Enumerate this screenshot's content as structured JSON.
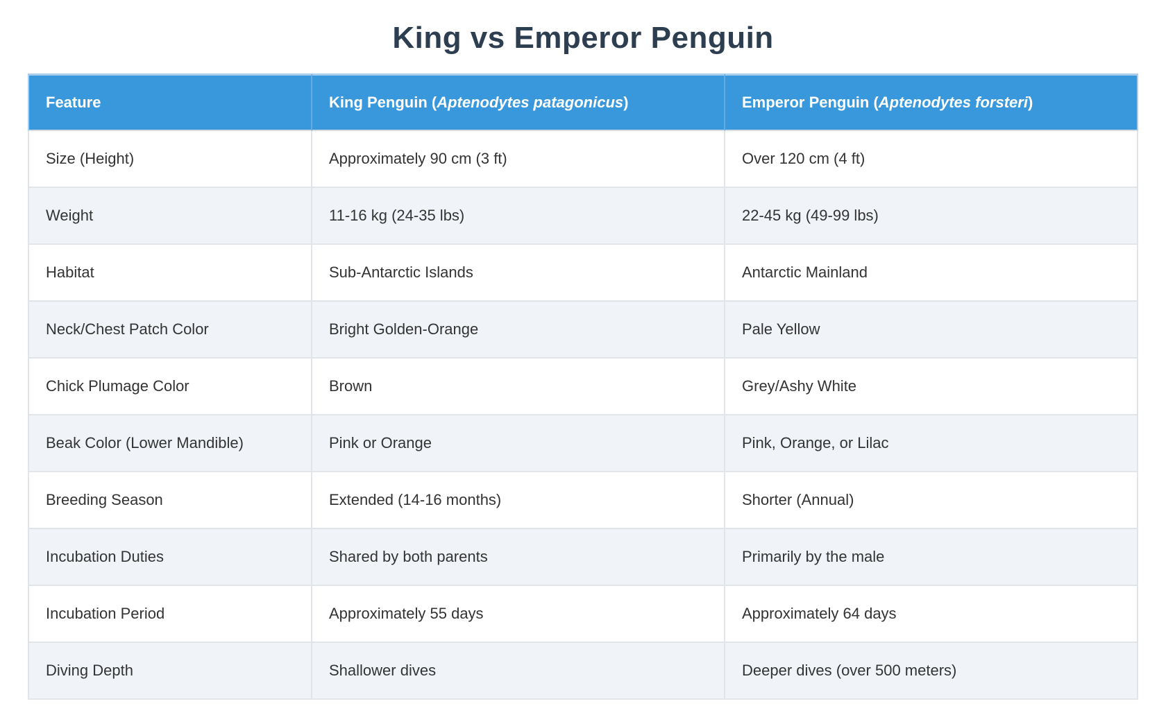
{
  "page": {
    "title": "King vs Emperor Penguin"
  },
  "colors": {
    "title_text": "#2c3e50",
    "header_background": "#3998db",
    "header_text": "#ffffff",
    "row_alternate_background": "#f0f4f8",
    "row_background": "#ffffff",
    "body_text": "#333333",
    "cell_border": "#e1e4e8"
  },
  "table": {
    "header": {
      "feature": "Feature",
      "king": {
        "prefix": "King Penguin (",
        "species": "Aptenodytes patagonicus",
        "suffix": ")"
      },
      "emperor": {
        "prefix": "Emperor Penguin (",
        "species": "Aptenodytes forsteri",
        "suffix": ")"
      }
    },
    "rows": [
      {
        "feature": "Size (Height)",
        "king": "Approximately 90 cm (3 ft)",
        "emperor": "Over 120 cm (4 ft)"
      },
      {
        "feature": "Weight",
        "king": "11-16 kg (24-35 lbs)",
        "emperor": "22-45 kg (49-99 lbs)"
      },
      {
        "feature": "Habitat",
        "king": "Sub-Antarctic Islands",
        "emperor": "Antarctic Mainland"
      },
      {
        "feature": "Neck/Chest Patch Color",
        "king": "Bright Golden-Orange",
        "emperor": "Pale Yellow"
      },
      {
        "feature": "Chick Plumage Color",
        "king": "Brown",
        "emperor": "Grey/Ashy White"
      },
      {
        "feature": "Beak Color (Lower Mandible)",
        "king": "Pink or Orange",
        "emperor": "Pink, Orange, or Lilac"
      },
      {
        "feature": "Breeding Season",
        "king": "Extended (14-16 months)",
        "emperor": "Shorter (Annual)"
      },
      {
        "feature": "Incubation Duties",
        "king": "Shared by both parents",
        "emperor": "Primarily by the male"
      },
      {
        "feature": "Incubation Period",
        "king": "Approximately 55 days",
        "emperor": "Approximately 64 days"
      },
      {
        "feature": "Diving Depth",
        "king": "Shallower dives",
        "emperor": "Deeper dives (over 500 meters)"
      }
    ]
  }
}
